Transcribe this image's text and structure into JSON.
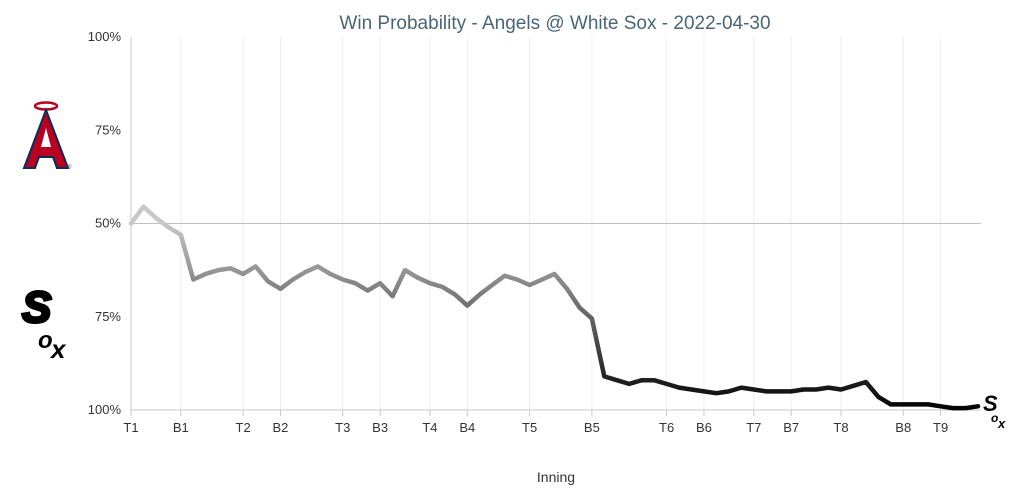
{
  "chart_data": {
    "type": "line",
    "title": "Win Probability - Angels @ White Sox - 2022-04-30",
    "xlabel": "Inning",
    "ylabel": "",
    "y_tick_labels": [
      "100%",
      "75%",
      "50%",
      "75%",
      "100%"
    ],
    "ylim": [
      -100,
      100
    ],
    "grid": true,
    "teams": {
      "top": {
        "name": "Angels",
        "logo": "angels-logo",
        "color": "#BA0021"
      },
      "bottom": {
        "name": "White Sox",
        "logo": "white-sox-logo",
        "color": "#000000"
      }
    },
    "x_tick_labels": [
      {
        "label": "T1",
        "index": 0
      },
      {
        "label": "B1",
        "index": 4
      },
      {
        "label": "T2",
        "index": 9
      },
      {
        "label": "B2",
        "index": 12
      },
      {
        "label": "T3",
        "index": 17
      },
      {
        "label": "B3",
        "index": 20
      },
      {
        "label": "T4",
        "index": 24
      },
      {
        "label": "B4",
        "index": 27
      },
      {
        "label": "T5",
        "index": 32
      },
      {
        "label": "B5",
        "index": 37
      },
      {
        "label": "T6",
        "index": 43
      },
      {
        "label": "B6",
        "index": 46
      },
      {
        "label": "T7",
        "index": 50
      },
      {
        "label": "B7",
        "index": 53
      },
      {
        "label": "T8",
        "index": 57
      },
      {
        "label": "B8",
        "index": 62
      },
      {
        "label": "T9",
        "index": 65
      }
    ],
    "series": [
      {
        "values": [
          0,
          9,
          3,
          -2,
          -6,
          -30,
          -27,
          -25,
          -24,
          -27,
          -23,
          -31,
          -35,
          -30,
          -26,
          -23,
          -27,
          -30,
          -32,
          -36,
          -32,
          -39,
          -25,
          -29,
          -32,
          -34,
          -38,
          -44,
          -38,
          -33,
          -28,
          -30,
          -33,
          -30,
          -27,
          -35,
          -45,
          -51,
          -82,
          -84,
          -86,
          -84,
          -84,
          -86,
          -88,
          -89,
          -90,
          -91,
          -90,
          -88,
          -89,
          -90,
          -90,
          -90,
          -89,
          -89,
          -88,
          -89,
          -87,
          -85,
          -93,
          -97,
          -97,
          -97,
          -97,
          -98,
          -99,
          -99,
          -98
        ]
      }
    ]
  }
}
